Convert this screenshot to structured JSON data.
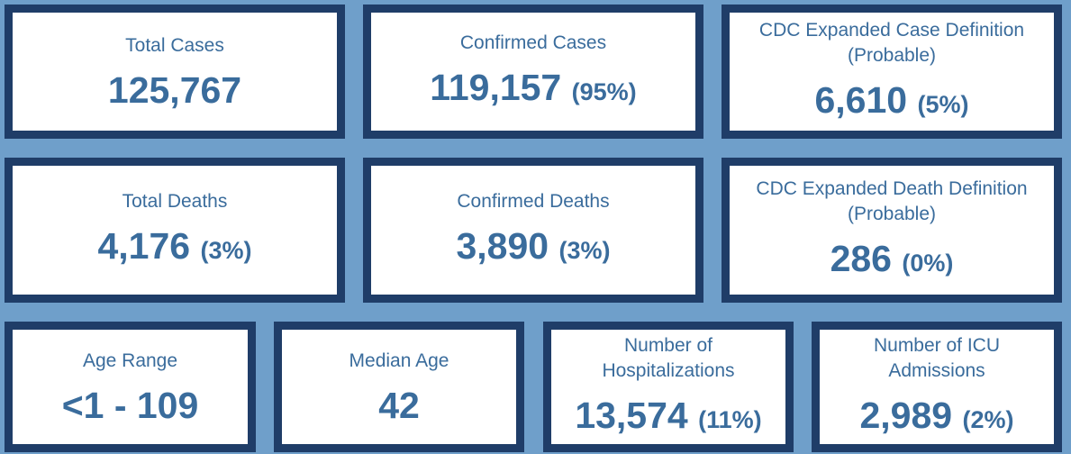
{
  "cards": [
    {
      "label": "Total Cases",
      "value": "125,767"
    },
    {
      "label": "Confirmed Cases",
      "value": "119,157",
      "percent": "(95%)"
    },
    {
      "label": "CDC Expanded Case Definition (Probable)",
      "value": "6,610",
      "percent": "(5%)"
    },
    {
      "label": "Total Deaths",
      "value": "4,176",
      "percent": "(3%)"
    },
    {
      "label": "Confirmed Deaths",
      "value": "3,890",
      "percent": "(3%)"
    },
    {
      "label": "CDC Expanded Death Definition (Probable)",
      "value": "286",
      "percent": "(0%)"
    },
    {
      "label": "Age Range",
      "value": "<1 - 109"
    },
    {
      "label": "Median Age",
      "value": "42"
    },
    {
      "label": "Number of Hospitalizations",
      "value": "13,574",
      "percent": "(11%)"
    },
    {
      "label": "Number of ICU Admissions",
      "value": "2,989",
      "percent": "(2%)"
    }
  ]
}
